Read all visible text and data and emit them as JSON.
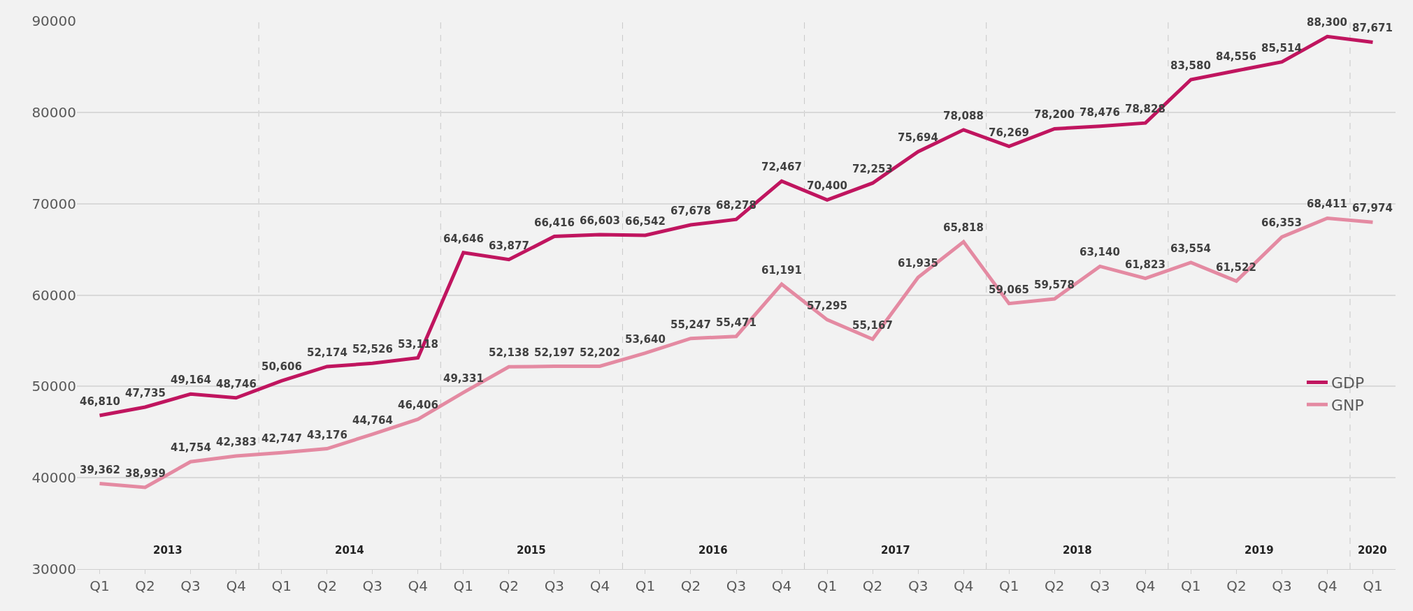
{
  "chart_data": {
    "type": "line",
    "categories": [
      "Q1",
      "Q2",
      "Q3",
      "Q4",
      "Q1",
      "Q2",
      "Q3",
      "Q4",
      "Q1",
      "Q2",
      "Q3",
      "Q4",
      "Q1",
      "Q2",
      "Q3",
      "Q4",
      "Q1",
      "Q2",
      "Q3",
      "Q4",
      "Q1",
      "Q2",
      "Q3",
      "Q4",
      "Q1",
      "Q2",
      "Q3",
      "Q4",
      "Q1"
    ],
    "series": [
      {
        "name": "GDP",
        "color": "#c0155f",
        "values": [
          46810,
          47735,
          49164,
          48746,
          50606,
          52174,
          52526,
          53118,
          64646,
          63877,
          66416,
          66603,
          66542,
          67678,
          68278,
          72467,
          70400,
          72253,
          75694,
          78088,
          76269,
          78200,
          78476,
          78828,
          83580,
          84556,
          85514,
          88300,
          87671
        ],
        "value_labels": [
          "46,810",
          "47,735",
          "49,164",
          "48,746",
          "50,606",
          "52,174",
          "52,526",
          "53,118",
          "64,646",
          "63,877",
          "66,416",
          "66,603",
          "66,542",
          "67,678",
          "68,278",
          "72,467",
          "70,400",
          "72,253",
          "75,694",
          "78,088",
          "76,269",
          "78,200",
          "78,476",
          "78,828",
          "83,580",
          "84,556",
          "85,514",
          "88,300",
          "87,671"
        ]
      },
      {
        "name": "GNP",
        "color": "#e48aa2",
        "values": [
          39362,
          38939,
          41754,
          42383,
          42747,
          43176,
          44764,
          46406,
          49331,
          52138,
          52197,
          52202,
          53640,
          55247,
          55471,
          61191,
          57295,
          55167,
          61935,
          65818,
          59065,
          59578,
          63140,
          61823,
          63554,
          61522,
          66353,
          68411,
          67974
        ],
        "value_labels": [
          "39,362",
          "38,939",
          "41,754",
          "42,383",
          "42,747",
          "43,176",
          "44,764",
          "46,406",
          "49,331",
          "52,138",
          "52,197",
          "52,202",
          "53,640",
          "55,247",
          "55,471",
          "61,191",
          "57,295",
          "55,167",
          "61,935",
          "65,818",
          "59,065",
          "59,578",
          "63,140",
          "61,823",
          "63,554",
          "61,522",
          "66,353",
          "68,411",
          "67,974"
        ]
      }
    ],
    "annotations": [
      "2013",
      "2014",
      "2015",
      "2016",
      "2017",
      "2018",
      "2019",
      "2020"
    ],
    "ylim": [
      30000,
      90000
    ],
    "yticks": [
      30000,
      40000,
      50000,
      60000,
      70000,
      80000,
      90000
    ],
    "grid": "y",
    "legend": "right",
    "marker": "none",
    "line_style": "solid"
  }
}
